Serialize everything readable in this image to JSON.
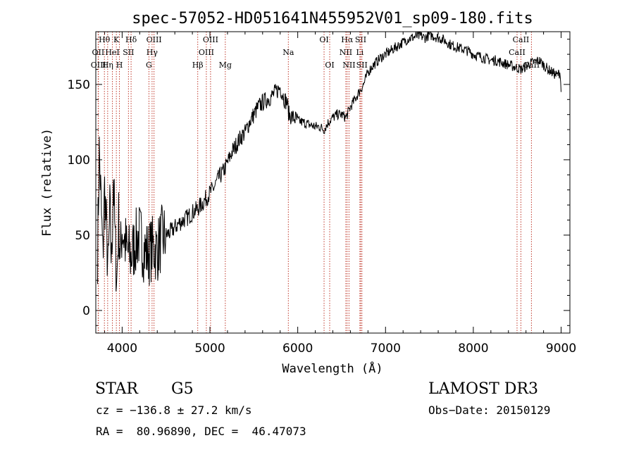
{
  "chart_data": {
    "type": "line",
    "title": "spec-57052-HD051641N455952V01_sp09-180.fits",
    "xlabel": "Wavelength (Å)",
    "ylabel": "Flux (relative)",
    "xlim": [
      3700,
      9100
    ],
    "ylim": [
      -15,
      185
    ],
    "xticks": [
      4000,
      5000,
      6000,
      7000,
      8000,
      9000
    ],
    "xtick_labels": [
      "4000",
      "5000",
      "6000",
      "7000",
      "8000",
      "9000"
    ],
    "yticks": [
      0,
      50,
      100,
      150
    ],
    "ytick_labels": [
      "0",
      "50",
      "100",
      "150"
    ],
    "series": [
      {
        "name": "flux",
        "x": [
          3720,
          3740,
          3760,
          3780,
          3800,
          3820,
          3840,
          3860,
          3880,
          3900,
          3920,
          3940,
          3960,
          3980,
          4000,
          4050,
          4100,
          4150,
          4200,
          4250,
          4300,
          4350,
          4400,
          4450,
          4500,
          4550,
          4600,
          4650,
          4700,
          4750,
          4800,
          4850,
          4900,
          4950,
          5000,
          5050,
          5100,
          5150,
          5200,
          5250,
          5300,
          5350,
          5400,
          5450,
          5500,
          5550,
          5600,
          5650,
          5700,
          5750,
          5800,
          5850,
          5880,
          5900,
          5950,
          6000,
          6050,
          6100,
          6150,
          6200,
          6250,
          6300,
          6350,
          6400,
          6450,
          6500,
          6550,
          6600,
          6650,
          6700,
          6750,
          6800,
          6850,
          6900,
          6950,
          7000,
          7050,
          7100,
          7150,
          7200,
          7250,
          7300,
          7350,
          7400,
          7450,
          7500,
          7550,
          7600,
          7650,
          7700,
          7750,
          7800,
          7850,
          7900,
          7950,
          8000,
          8050,
          8100,
          8150,
          8200,
          8250,
          8300,
          8350,
          8400,
          8450,
          8500,
          8550,
          8600,
          8650,
          8700,
          8750,
          8800,
          8850,
          8900,
          8950,
          8990,
          9000
        ],
        "y": [
          40,
          105,
          70,
          35,
          80,
          55,
          25,
          65,
          30,
          90,
          45,
          20,
          60,
          35,
          55,
          40,
          35,
          45,
          50,
          40,
          38,
          42,
          40,
          48,
          50,
          52,
          55,
          58,
          60,
          62,
          65,
          67,
          70,
          74,
          78,
          82,
          88,
          92,
          98,
          105,
          110,
          115,
          118,
          125,
          130,
          135,
          138,
          140,
          142,
          145,
          148,
          140,
          138,
          130,
          128,
          126,
          125,
          124,
          123,
          122,
          122,
          120,
          125,
          128,
          130,
          130,
          128,
          135,
          140,
          145,
          150,
          158,
          162,
          165,
          168,
          170,
          172,
          174,
          176,
          178,
          180,
          181,
          182,
          182,
          181,
          183,
          182,
          181,
          180,
          178,
          176,
          175,
          174,
          173,
          172,
          170,
          169,
          168,
          167,
          166,
          166,
          165,
          164,
          163,
          162,
          161,
          160,
          162,
          164,
          165,
          166,
          163,
          160,
          158,
          156,
          158,
          145
        ]
      }
    ],
    "lines": [
      {
        "name": "Hθ",
        "x": 3798,
        "row": 1
      },
      {
        "name": "OII",
        "x": 3727,
        "row": 2
      },
      {
        "name": "OIII",
        "x": 3730,
        "row": 3
      },
      {
        "name": "K",
        "x": 3934,
        "row": 1
      },
      {
        "name": "HeI",
        "x": 3889,
        "row": 2
      },
      {
        "name": "Hη",
        "x": 3835,
        "row": 3
      },
      {
        "name": "H",
        "x": 3969,
        "row": 3
      },
      {
        "name": "Hδ",
        "x": 4102,
        "row": 1
      },
      {
        "name": "SII",
        "x": 4072,
        "row": 2
      },
      {
        "name": "OIII",
        "x": 4363,
        "row": 1
      },
      {
        "name": "Hγ",
        "x": 4341,
        "row": 2
      },
      {
        "name": "G",
        "x": 4305,
        "row": 3
      },
      {
        "name": "Hβ",
        "x": 4861,
        "row": 3
      },
      {
        "name": "OIII",
        "x": 5007,
        "row": 1
      },
      {
        "name": "OIII",
        "x": 4959,
        "row": 2
      },
      {
        "name": "Mg",
        "x": 5175,
        "row": 3
      },
      {
        "name": "Na",
        "x": 5893,
        "row": 2
      },
      {
        "name": "OI",
        "x": 6300,
        "row": 1
      },
      {
        "name": "OI",
        "x": 6364,
        "row": 3
      },
      {
        "name": "Hα",
        "x": 6563,
        "row": 1
      },
      {
        "name": "SII",
        "x": 6717,
        "row": 1
      },
      {
        "name": "NII",
        "x": 6548,
        "row": 2
      },
      {
        "name": "Li",
        "x": 6708,
        "row": 2
      },
      {
        "name": "NII",
        "x": 6584,
        "row": 3
      },
      {
        "name": "SII",
        "x": 6731,
        "row": 3
      },
      {
        "name": "CaII",
        "x": 8542,
        "row": 1
      },
      {
        "name": "CaII",
        "x": 8498,
        "row": 2
      },
      {
        "name": "CaII",
        "x": 8662,
        "row": 3
      }
    ]
  },
  "info": {
    "class_label": "STAR",
    "subclass": "G5",
    "survey": "LAMOST DR3",
    "cz": "cz = −136.8 ± 27.2 km/s",
    "obs_date": "Obs−Date: 20150129",
    "coords": "RA =  80.96890, DEC =  46.47073"
  }
}
